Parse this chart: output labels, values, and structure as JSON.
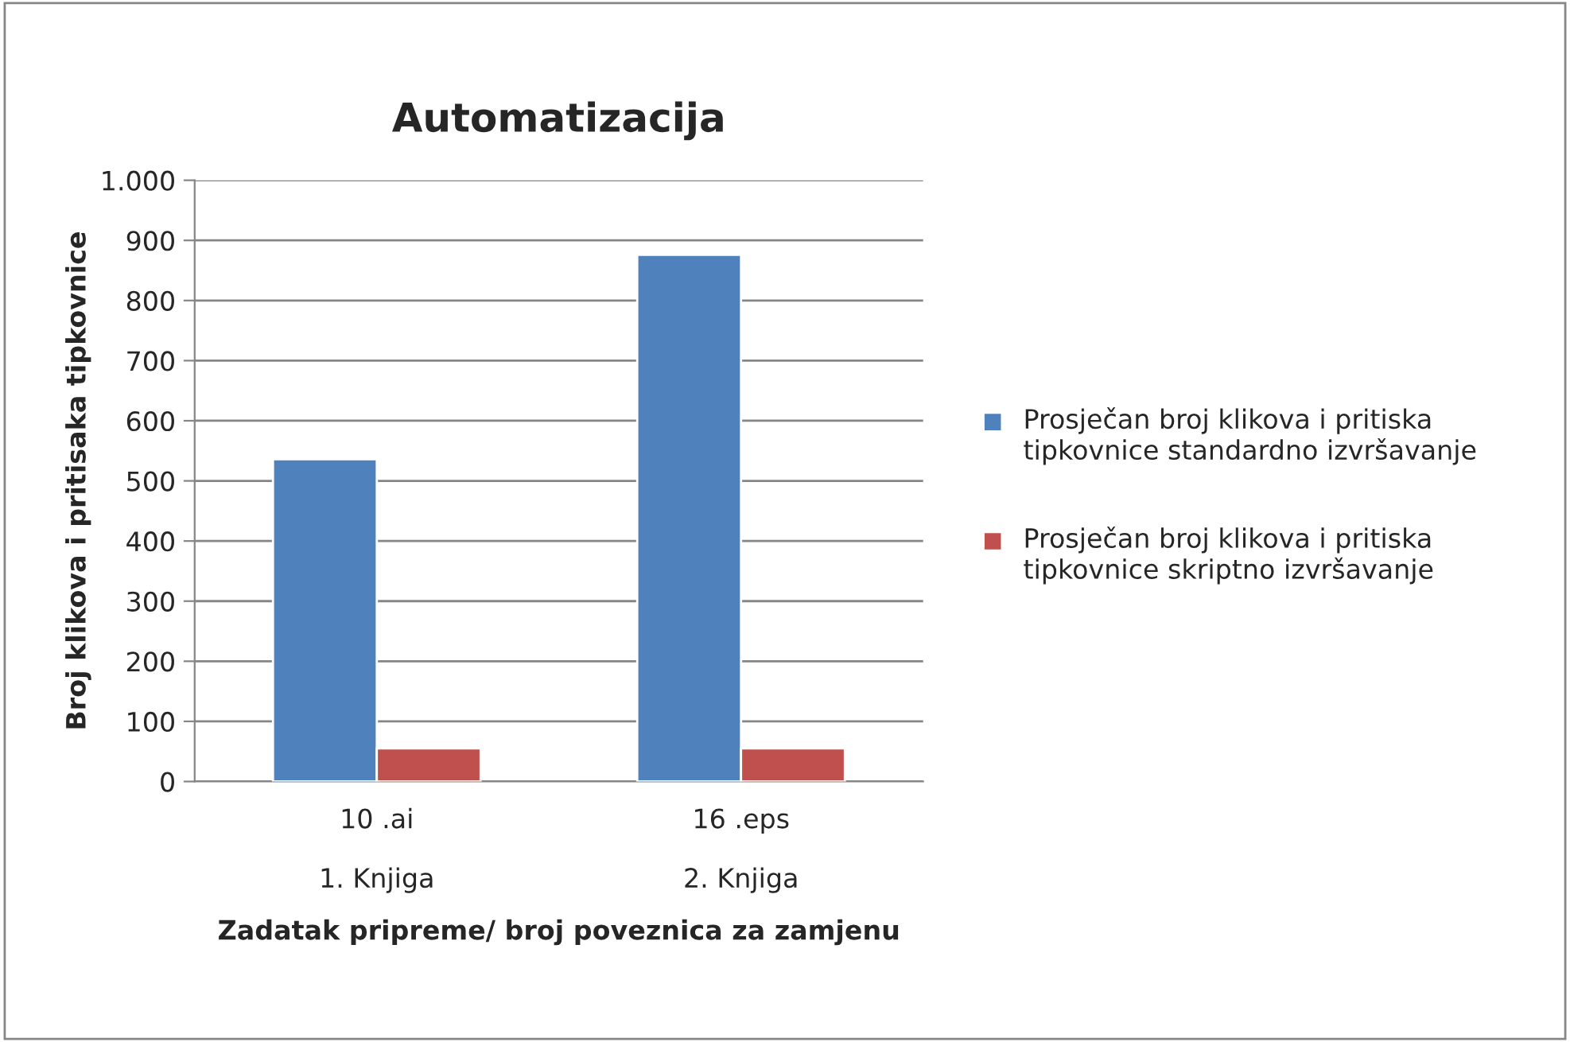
{
  "chart_data": {
    "type": "bar",
    "title": "Automatizacija",
    "xlabel": "Zadatak pripreme/ broj poveznica za zamjenu",
    "ylabel": "Broj klikova i pritisaka tipkovnice",
    "categories": [
      "10 .ai\n\n1. Knjiga",
      "16 .eps\n\n2. Knjiga"
    ],
    "series": [
      {
        "name": "Prosječan broj klikova i pritiska tipkovnice standardno izvršavanje",
        "color": "#4f81bd",
        "values": [
          536,
          876
        ]
      },
      {
        "name": "Prosječan broj klikova i pritiska tipkovnice skriptno izvršavanje",
        "color": "#c0504d",
        "values": [
          55,
          55
        ]
      }
    ],
    "ylim": [
      0,
      1000
    ],
    "yticks": [
      0,
      100,
      200,
      300,
      400,
      500,
      600,
      700,
      800,
      900,
      {
        "value": 1000,
        "label": "1.000"
      }
    ],
    "grid": "y",
    "legend": "right"
  }
}
